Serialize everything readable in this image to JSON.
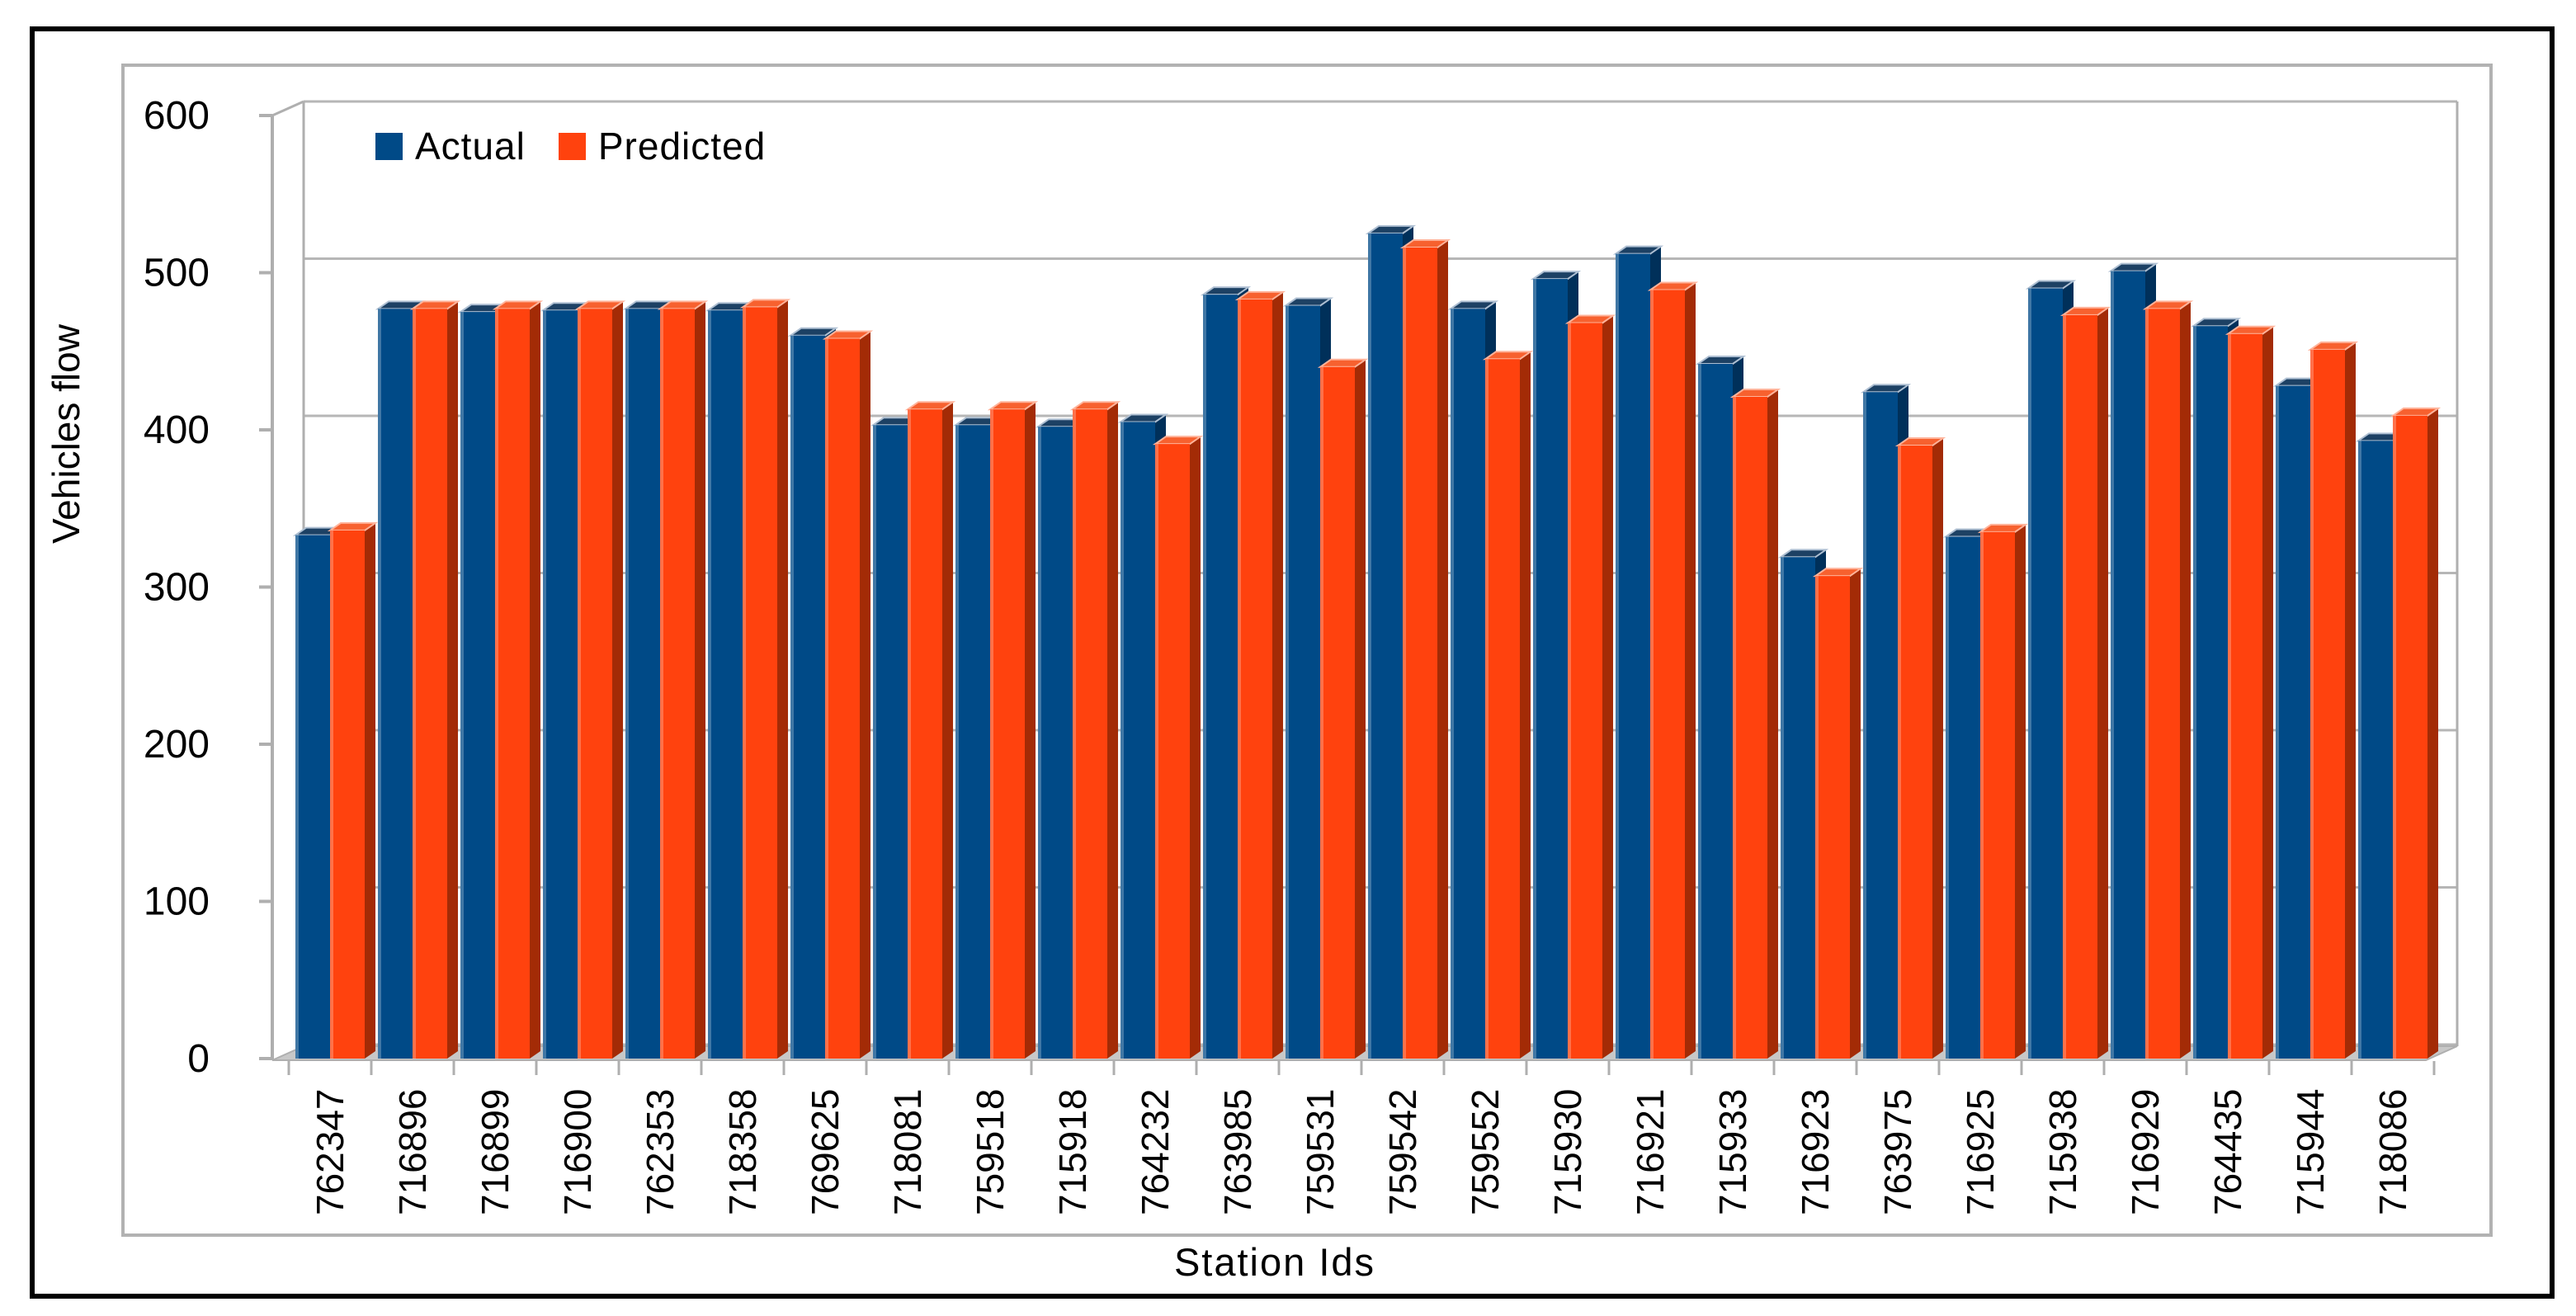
{
  "legend": {
    "actual": "Actual",
    "predicted": "Predicted"
  },
  "axes": {
    "y_title": "Vehicles flow",
    "x_title": "Station Ids",
    "y_ticks": [
      0,
      100,
      200,
      300,
      400,
      500,
      600
    ]
  },
  "colors": {
    "actual": "#004A87",
    "actual_side": "#00305A",
    "actual_top": "#1D4164",
    "actual_top_edge": "#AEBFD2",
    "predicted": "#FF420E",
    "predicted_side": "#A32B06",
    "predicted_top": "#F7612F",
    "predicted_top_edge": "#FFB39A",
    "grid": "#B6B6B6",
    "wall": "#AFAFAF",
    "floor": "#C8C8C8",
    "text": "#000000",
    "frame_border": "#000000",
    "box_border": "#B2B2B2"
  },
  "chart_data": {
    "type": "bar",
    "style": "3d-clustered-column",
    "title": "",
    "xlabel": "Station Ids",
    "ylabel": "Vehicles flow",
    "ylim": [
      0,
      600
    ],
    "y_tick_step": 100,
    "grid": true,
    "legend_position": "top-left-inside",
    "categories": [
      "762347",
      "716896",
      "716899",
      "716900",
      "762353",
      "718358",
      "769625",
      "718081",
      "759518",
      "715918",
      "764232",
      "763985",
      "759531",
      "759542",
      "759552",
      "715930",
      "716921",
      "715933",
      "716923",
      "763975",
      "716925",
      "715938",
      "716929",
      "764435",
      "715944",
      "718086"
    ],
    "series": [
      {
        "name": "Actual",
        "values": [
          333,
          477,
          475,
          476,
          477,
          476,
          460,
          403,
          403,
          402,
          405,
          486,
          479,
          525,
          477,
          496,
          512,
          442,
          319,
          424,
          332,
          490,
          501,
          466,
          428,
          393
        ]
      },
      {
        "name": "Predicted",
        "values": [
          336,
          477,
          477,
          477,
          477,
          478,
          458,
          413,
          413,
          413,
          391,
          483,
          440,
          516,
          445,
          468,
          489,
          421,
          307,
          390,
          335,
          473,
          477,
          461,
          451,
          409
        ]
      }
    ]
  }
}
